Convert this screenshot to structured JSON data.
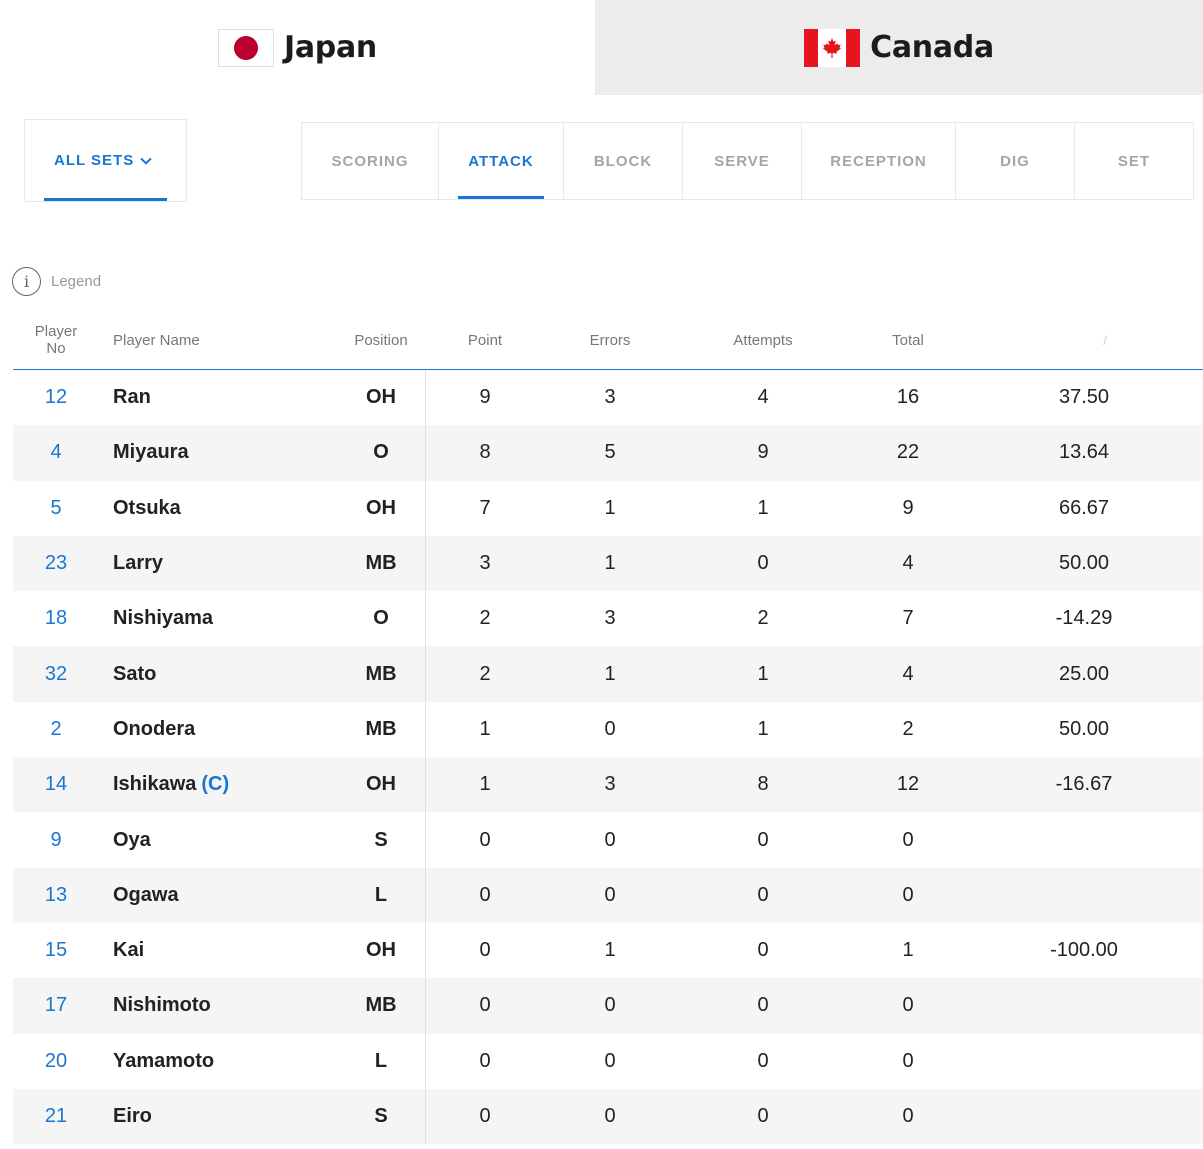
{
  "teams": {
    "home": {
      "name": "Japan"
    },
    "away": {
      "name": "Canada"
    }
  },
  "sets_dropdown": {
    "label": "ALL SETS"
  },
  "stat_tabs": [
    {
      "label": "SCORING",
      "active": false
    },
    {
      "label": "ATTACK",
      "active": true
    },
    {
      "label": "BLOCK",
      "active": false
    },
    {
      "label": "SERVE",
      "active": false
    },
    {
      "label": "RECEPTION",
      "active": false
    },
    {
      "label": "DIG",
      "active": false
    },
    {
      "label": "SET",
      "active": false
    }
  ],
  "legend": {
    "label": "Legend"
  },
  "colors": {
    "accent": "#1877d2",
    "inactive_tab_bg": "#ececec",
    "row_alt": "#f5f5f5"
  },
  "table": {
    "headers": {
      "player_no": "Player No",
      "player_name": "Player Name",
      "position": "Position",
      "point": "Point",
      "errors": "Errors",
      "attempts": "Attempts",
      "total": "Total",
      "efficiency": "/"
    },
    "rows": [
      {
        "no": "12",
        "name": "Ran",
        "captain": "",
        "pos": "OH",
        "point": "9",
        "errors": "3",
        "attempts": "4",
        "total": "16",
        "eff": "37.50"
      },
      {
        "no": "4",
        "name": "Miyaura",
        "captain": "",
        "pos": "O",
        "point": "8",
        "errors": "5",
        "attempts": "9",
        "total": "22",
        "eff": "13.64"
      },
      {
        "no": "5",
        "name": "Otsuka",
        "captain": "",
        "pos": "OH",
        "point": "7",
        "errors": "1",
        "attempts": "1",
        "total": "9",
        "eff": "66.67"
      },
      {
        "no": "23",
        "name": "Larry",
        "captain": "",
        "pos": "MB",
        "point": "3",
        "errors": "1",
        "attempts": "0",
        "total": "4",
        "eff": "50.00"
      },
      {
        "no": "18",
        "name": "Nishiyama",
        "captain": "",
        "pos": "O",
        "point": "2",
        "errors": "3",
        "attempts": "2",
        "total": "7",
        "eff": "-14.29"
      },
      {
        "no": "32",
        "name": "Sato",
        "captain": "",
        "pos": "MB",
        "point": "2",
        "errors": "1",
        "attempts": "1",
        "total": "4",
        "eff": "25.00"
      },
      {
        "no": "2",
        "name": "Onodera",
        "captain": "",
        "pos": "MB",
        "point": "1",
        "errors": "0",
        "attempts": "1",
        "total": "2",
        "eff": "50.00"
      },
      {
        "no": "14",
        "name": "Ishikawa",
        "captain": "(C)",
        "pos": "OH",
        "point": "1",
        "errors": "3",
        "attempts": "8",
        "total": "12",
        "eff": "-16.67"
      },
      {
        "no": "9",
        "name": "Oya",
        "captain": "",
        "pos": "S",
        "point": "0",
        "errors": "0",
        "attempts": "0",
        "total": "0",
        "eff": ""
      },
      {
        "no": "13",
        "name": "Ogawa",
        "captain": "",
        "pos": "L",
        "point": "0",
        "errors": "0",
        "attempts": "0",
        "total": "0",
        "eff": ""
      },
      {
        "no": "15",
        "name": "Kai",
        "captain": "",
        "pos": "OH",
        "point": "0",
        "errors": "1",
        "attempts": "0",
        "total": "1",
        "eff": "-100.00"
      },
      {
        "no": "17",
        "name": "Nishimoto",
        "captain": "",
        "pos": "MB",
        "point": "0",
        "errors": "0",
        "attempts": "0",
        "total": "0",
        "eff": ""
      },
      {
        "no": "20",
        "name": "Yamamoto",
        "captain": "",
        "pos": "L",
        "point": "0",
        "errors": "0",
        "attempts": "0",
        "total": "0",
        "eff": ""
      },
      {
        "no": "21",
        "name": "Eiro",
        "captain": "",
        "pos": "S",
        "point": "0",
        "errors": "0",
        "attempts": "0",
        "total": "0",
        "eff": ""
      }
    ]
  }
}
